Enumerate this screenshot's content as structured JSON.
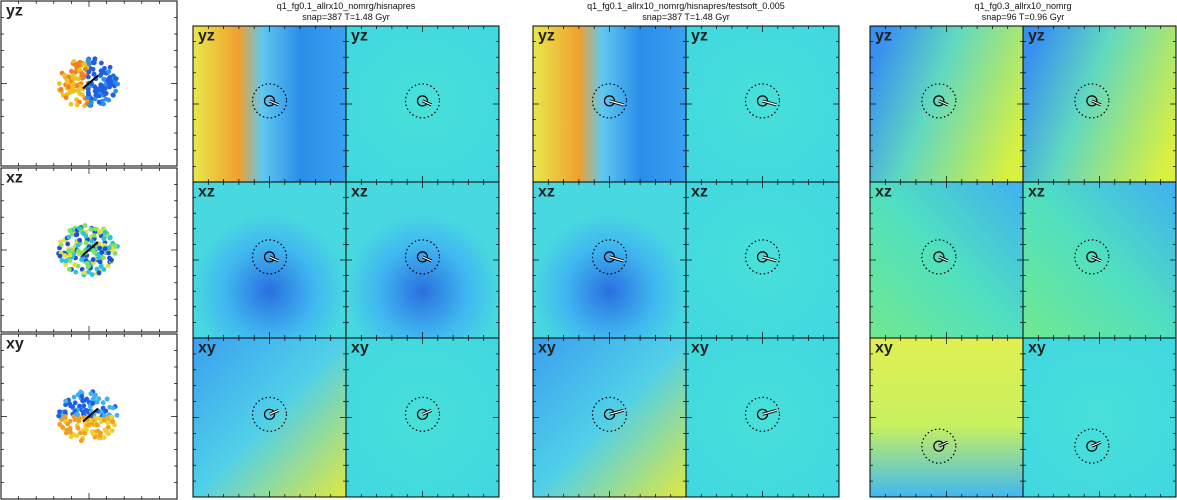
{
  "left_column": {
    "labels": [
      "yz",
      "xz",
      "xy"
    ]
  },
  "groups": [
    {
      "title": "q1_fg0.1_allrx10_nomrg/hisnapres",
      "subtitle": "snap=387   T=1.48 Gyr",
      "labels": [
        "yz",
        "yz",
        "xz",
        "xz",
        "xy",
        "xy"
      ]
    },
    {
      "title": "q1_fg0.1_allrx10_nomrg/hisnapres/testsoft_0.005",
      "subtitle": "snap=387   T=1.48 Gyr",
      "labels": [
        "yz",
        "yz",
        "xz",
        "xz",
        "xy",
        "xy"
      ]
    },
    {
      "title": "q1_fg0.3_allrx10_nomrg",
      "subtitle": "snap=96   T=0.96 Gyr",
      "labels": [
        "yz",
        "yz",
        "xz",
        "xz",
        "xy",
        "xy"
      ]
    }
  ]
}
